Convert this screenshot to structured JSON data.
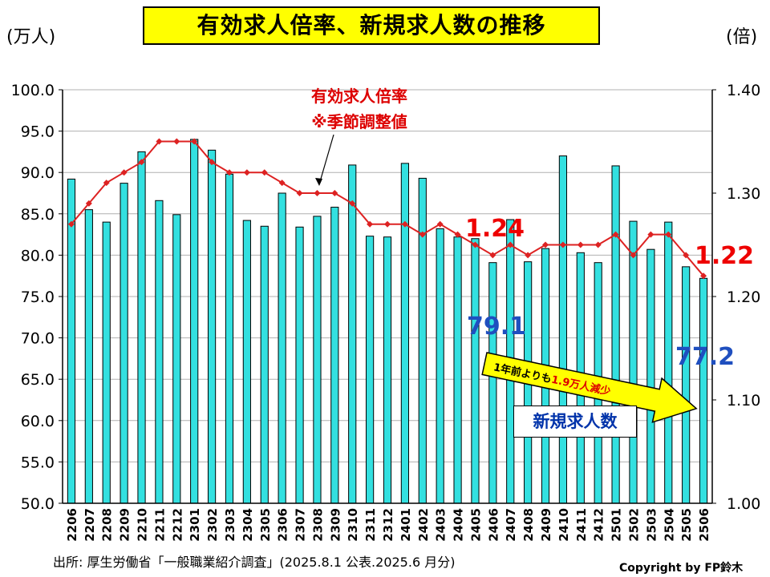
{
  "title": "有効求人倍率、新規求人数の推移",
  "left_unit": "(万人)",
  "right_unit": "(倍)",
  "source": "出所: 厚生労働省「一般職業紹介調査」(2025.8.1 公表.2025.6 月分)",
  "copyright": "Copyright by FP鈴木",
  "annotations": {
    "ratio_label_line1": "有効求人倍率",
    "ratio_label_line2": "※季節調整値",
    "series_box_label": "新規求人数",
    "arrow_text_1": "1年前よりも",
    "arrow_text_2": "1.9万人減少",
    "val_ratio_2406": "1.24",
    "val_ratio_2506": "1.22",
    "val_new_2406": "79.1",
    "val_new_2506": "77.2"
  },
  "chart_data": {
    "type": "bar",
    "categories": [
      "2206",
      "2207",
      "2208",
      "2209",
      "2210",
      "2211",
      "2212",
      "2301",
      "2302",
      "2303",
      "2304",
      "2305",
      "2306",
      "2307",
      "2308",
      "2309",
      "2310",
      "2311",
      "2312",
      "2401",
      "2402",
      "2403",
      "2404",
      "2405",
      "2406",
      "2407",
      "2408",
      "2409",
      "2410",
      "2411",
      "2412",
      "2501",
      "2502",
      "2503",
      "2504",
      "2505",
      "2506"
    ],
    "series": [
      {
        "name": "新規求人数",
        "type": "bar",
        "axis": "left",
        "values": [
          89.2,
          85.5,
          84.0,
          88.7,
          92.5,
          86.6,
          84.9,
          94.0,
          92.7,
          89.8,
          84.2,
          83.5,
          87.5,
          83.4,
          84.7,
          85.8,
          90.9,
          82.3,
          82.2,
          91.1,
          89.3,
          83.2,
          82.2,
          82.0,
          79.1,
          84.3,
          79.2,
          80.8,
          92.0,
          80.3,
          79.1,
          90.8,
          84.1,
          80.7,
          84.0,
          78.6,
          77.2
        ]
      },
      {
        "name": "有効求人倍率",
        "type": "line",
        "axis": "right",
        "values": [
          1.27,
          1.29,
          1.31,
          1.32,
          1.33,
          1.35,
          1.35,
          1.35,
          1.33,
          1.32,
          1.32,
          1.32,
          1.31,
          1.3,
          1.3,
          1.3,
          1.29,
          1.27,
          1.27,
          1.27,
          1.26,
          1.27,
          1.26,
          1.25,
          1.24,
          1.25,
          1.24,
          1.25,
          1.25,
          1.25,
          1.25,
          1.26,
          1.24,
          1.26,
          1.26,
          1.24,
          1.22
        ]
      }
    ],
    "y_left": {
      "min": 50,
      "max": 100,
      "ticks": [
        "50.0",
        "55.0",
        "60.0",
        "65.0",
        "70.0",
        "75.0",
        "80.0",
        "85.0",
        "90.0",
        "95.0",
        "100.0"
      ]
    },
    "y_right": {
      "min": 1.0,
      "max": 1.4,
      "ticks": [
        "1.00",
        "1.10",
        "1.20",
        "1.30",
        "1.40"
      ]
    },
    "grid": true,
    "colors": {
      "bar": "#33e0e0",
      "bar_stroke": "#000000",
      "line": "#dd2222",
      "title_bg": "#ffff00",
      "arrow": "#ffff00"
    }
  }
}
